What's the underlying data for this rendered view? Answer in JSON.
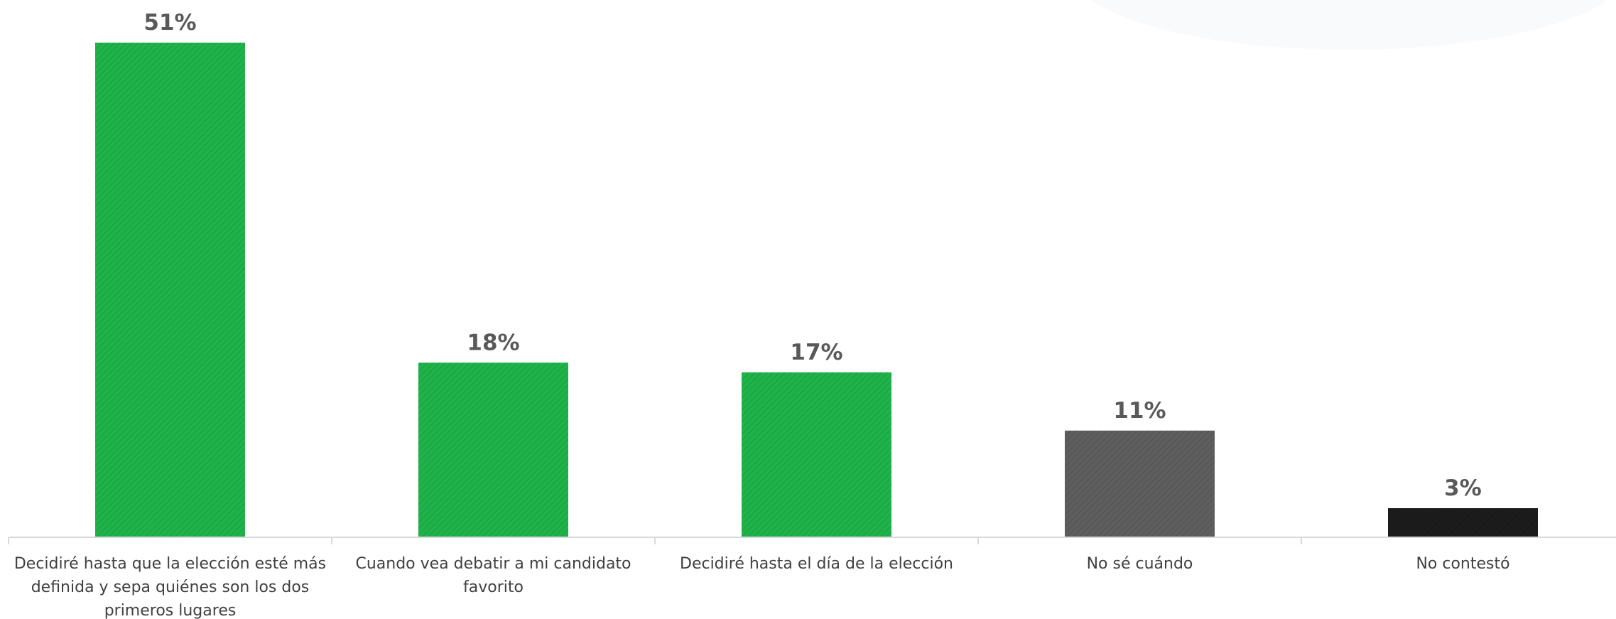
{
  "chart_data": {
    "type": "bar",
    "categories": [
      "Decidiré hasta que la elección esté más definida y sepa quiénes son los dos primeros lugares",
      "Cuando vea debatir a mi candidato favorito",
      "Decidiré hasta el día de la elección",
      "No sé cuándo",
      "No contestó"
    ],
    "category_lines": [
      [
        "Decidiré hasta que la elección esté más",
        "definida y sepa quiénes son los dos",
        "primeros lugares"
      ],
      [
        "Cuando vea debatir a mi candidato",
        "favorito"
      ],
      [
        "Decidiré hasta el día de la elección"
      ],
      [
        "No sé cuándo"
      ],
      [
        "No contestó"
      ]
    ],
    "values": [
      51,
      18,
      17,
      11,
      3
    ],
    "value_labels": [
      "51%",
      "18%",
      "17%",
      "11%",
      "3%"
    ],
    "bar_colors": [
      "#1fb34a",
      "#1fb34a",
      "#1fb34a",
      "#5e5e5e",
      "#1c1c1c"
    ],
    "bar_pattern": "diagonal-hatch",
    "axis_color": "#d9d9d9",
    "title": "",
    "xlabel": "",
    "ylabel": "",
    "ylim": [
      0,
      51
    ],
    "grid": false,
    "legend": "none"
  }
}
